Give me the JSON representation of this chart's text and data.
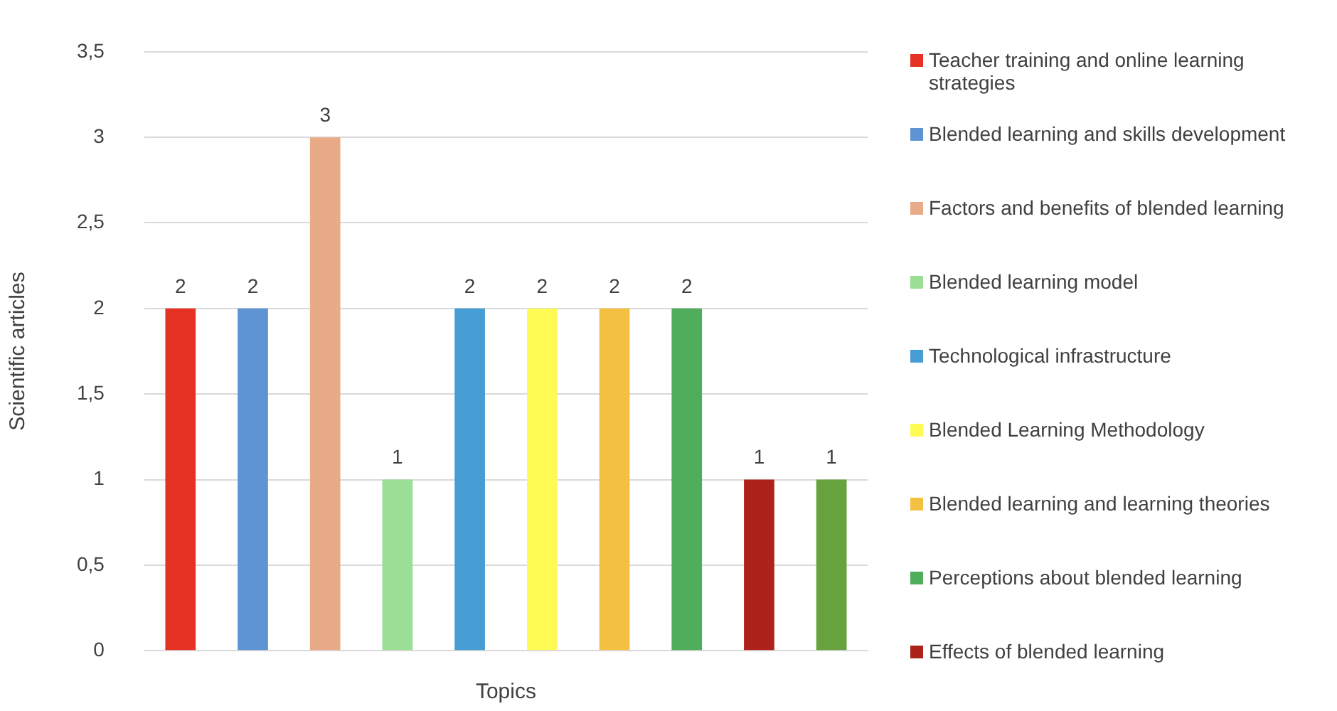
{
  "chart_data": {
    "type": "bar",
    "xlabel": "Topics",
    "ylabel": "Scientific articles",
    "categories": [
      null,
      null,
      null,
      null,
      null,
      null,
      null,
      null,
      null,
      null
    ],
    "series": [
      {
        "name": "Teacher training and online learning strategies",
        "color": "#e63225",
        "values": [
          2,
          null,
          null,
          null,
          null,
          null,
          null,
          null,
          null,
          null
        ]
      },
      {
        "name": "Blended learning and skills development",
        "color": "#5e94d4",
        "values": [
          null,
          2,
          null,
          null,
          null,
          null,
          null,
          null,
          null,
          null
        ]
      },
      {
        "name": "Factors and benefits of blended learning",
        "color": "#e8aa87",
        "values": [
          null,
          null,
          3,
          null,
          null,
          null,
          null,
          null,
          null,
          null
        ]
      },
      {
        "name": "Blended learning model",
        "color": "#9adf95",
        "values": [
          null,
          null,
          null,
          1,
          null,
          null,
          null,
          null,
          null,
          null
        ]
      },
      {
        "name": "Technological infrastructure",
        "color": "#459dd3",
        "values": [
          null,
          null,
          null,
          null,
          2,
          null,
          null,
          null,
          null,
          null
        ]
      },
      {
        "name": "Blended Learning Methodology",
        "color": "#fffb55",
        "values": [
          null,
          null,
          null,
          null,
          null,
          2,
          null,
          null,
          null,
          null
        ]
      },
      {
        "name": "Blended learning and learning theories",
        "color": "#f4c042",
        "values": [
          null,
          null,
          null,
          null,
          null,
          null,
          2,
          null,
          null,
          null
        ]
      },
      {
        "name": "Perceptions about blended learning",
        "color": "#4fad5b",
        "values": [
          null,
          null,
          null,
          null,
          null,
          null,
          null,
          2,
          null,
          null
        ]
      },
      {
        "name": "Effects of blended learning",
        "color": "#ad231b",
        "values": [
          null,
          null,
          null,
          null,
          null,
          null,
          null,
          null,
          1,
          null
        ]
      },
      {
        "color": "#67a23f",
        "values": [
          null,
          null,
          null,
          null,
          null,
          null,
          null,
          null,
          null,
          1
        ]
      }
    ],
    "ylim": [
      0,
      3.5
    ],
    "yticks": [
      0,
      {
        "value": 0.5,
        "label": "0,5"
      },
      1,
      {
        "value": 1.5,
        "label": "1,5"
      },
      2,
      {
        "value": 2.5,
        "label": "2,5"
      },
      3,
      {
        "value": 3.5,
        "label": "3,5"
      }
    ],
    "grid": "y",
    "legend": "right",
    "data_labels": true
  }
}
